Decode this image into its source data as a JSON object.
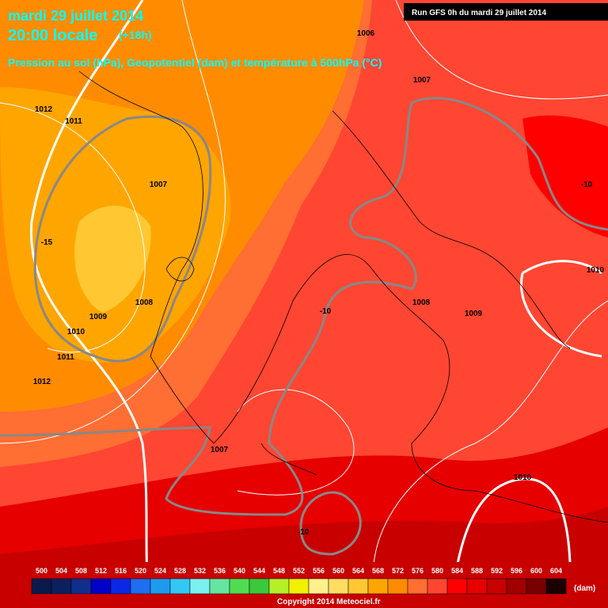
{
  "header": {
    "date": "mardi 29 juillet 2014",
    "time": "20:00 locale",
    "lead": "(+18h)",
    "subtitle": "Pression au sol (hPa), Geopotentiel (dam) et température à 500hPa (°C)",
    "run": "Run GFS 0h du mardi 29 juillet 2014"
  },
  "map_labels": [
    "1012",
    "1011",
    "1007",
    "1006",
    "1007",
    "-10",
    "1010",
    "-15",
    "1008",
    "1009",
    "1010",
    "1011",
    "1012",
    "-10",
    "1008",
    "1009",
    "1007",
    "1010",
    "-10"
  ],
  "colorbar": {
    "ticks": [
      "500",
      "504",
      "508",
      "512",
      "516",
      "520",
      "524",
      "528",
      "532",
      "536",
      "540",
      "544",
      "548",
      "552",
      "556",
      "560",
      "564",
      "568",
      "572",
      "576",
      "580",
      "584",
      "588",
      "592",
      "596",
      "600",
      "604"
    ],
    "colors": [
      "#0a1a4a",
      "#0c2060",
      "#102e8c",
      "#0000c8",
      "#0a28e6",
      "#1e6ef0",
      "#1e9bef",
      "#32c8f5",
      "#7af0f0",
      "#64e6a0",
      "#50dc50",
      "#3cc83c",
      "#b4f028",
      "#f0f000",
      "#fff08c",
      "#ffdc64",
      "#ffc832",
      "#ffa500",
      "#ff8c00",
      "#ff6e32",
      "#ff4632",
      "#ff0000",
      "#e60000",
      "#c80000",
      "#a00000",
      "#780000",
      "#1a0000"
    ],
    "unit": "(dam)"
  },
  "footer": {
    "copyright": "Copyright 2014 Meteociel.fr"
  }
}
